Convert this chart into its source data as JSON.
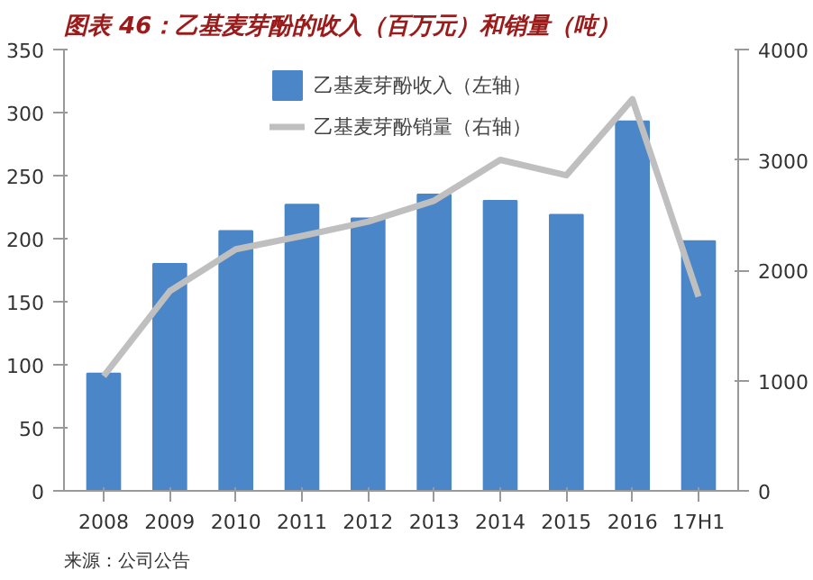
{
  "chart_data": {
    "type": "bar",
    "title": "图表 46：乙基麦芽酚的收入（百万元）和销量（吨）",
    "categories": [
      "2008",
      "2009",
      "2010",
      "2011",
      "2012",
      "2013",
      "2014",
      "2015",
      "2016",
      "17H1"
    ],
    "series": [
      {
        "name": "乙基麦芽酚收入（左轴）",
        "color": "#4a86c8",
        "values": [
          93,
          180,
          206,
          227,
          216,
          235,
          230,
          219,
          293,
          198
        ]
      },
      {
        "name": "乙基麦芽酚销量（右轴）",
        "type": "line",
        "axis": "y2",
        "color": "#bfbfbf",
        "values": [
          1040,
          1810,
          2190,
          2310,
          2440,
          2630,
          3000,
          2860,
          3550,
          1760
        ]
      }
    ],
    "ylim": [
      0,
      350
    ],
    "yticks": [
      0,
      50,
      100,
      150,
      200,
      250,
      300,
      350
    ],
    "y2lim": [
      0,
      4000
    ],
    "y2ticks": [
      0,
      1000,
      2000,
      3000,
      4000
    ],
    "legend": "top",
    "grid": false,
    "annotations": [
      "来源：公司公告"
    ]
  }
}
